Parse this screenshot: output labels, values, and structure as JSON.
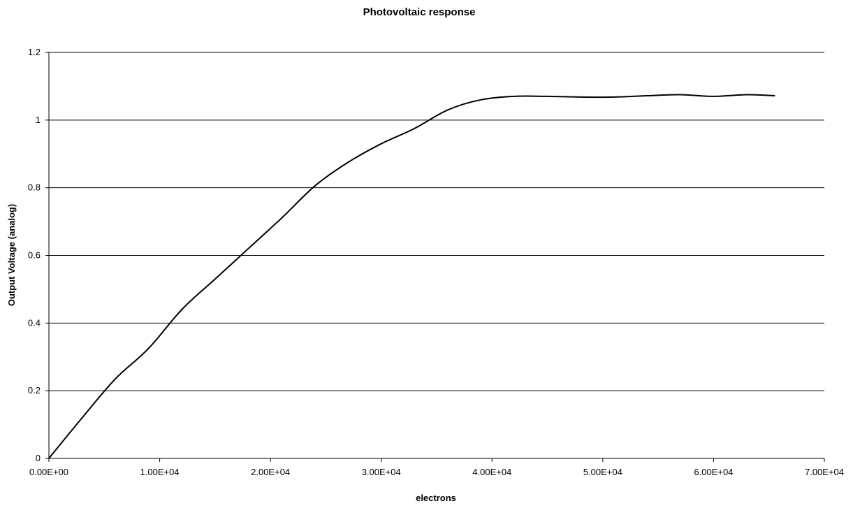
{
  "chart_data": {
    "type": "line",
    "title": "Photovoltaic response",
    "xlabel": "electrons",
    "ylabel": "Output Voltage (analog)",
    "xlim": [
      0,
      70000
    ],
    "ylim": [
      0,
      1.2
    ],
    "x_ticks": [
      0,
      10000,
      20000,
      30000,
      40000,
      50000,
      60000,
      70000
    ],
    "x_tick_labels": [
      "0.00E+00",
      "1.00E+04",
      "2.00E+04",
      "3.00E+04",
      "4.00E+04",
      "5.00E+04",
      "6.00E+04",
      "7.00E+04"
    ],
    "y_ticks": [
      0,
      0.2,
      0.4,
      0.6,
      0.8,
      1.0,
      1.2
    ],
    "y_tick_labels": [
      "0",
      "0.2",
      "0.4",
      "0.6",
      "0.8",
      "1",
      "1.2"
    ],
    "grid": "horizontal",
    "legend": "none",
    "series": [
      {
        "color": "#000000",
        "x": [
          0,
          3000,
          6000,
          9000,
          12000,
          15000,
          18000,
          21000,
          24000,
          27000,
          30000,
          33000,
          36000,
          39000,
          42000,
          45000,
          48000,
          51000,
          54000,
          57000,
          60000,
          63000,
          65500
        ],
        "y": [
          0,
          0.12,
          0.235,
          0.325,
          0.44,
          0.53,
          0.62,
          0.71,
          0.805,
          0.875,
          0.93,
          0.975,
          1.03,
          1.06,
          1.07,
          1.07,
          1.068,
          1.068,
          1.072,
          1.075,
          1.07,
          1.075,
          1.072
        ]
      }
    ]
  }
}
